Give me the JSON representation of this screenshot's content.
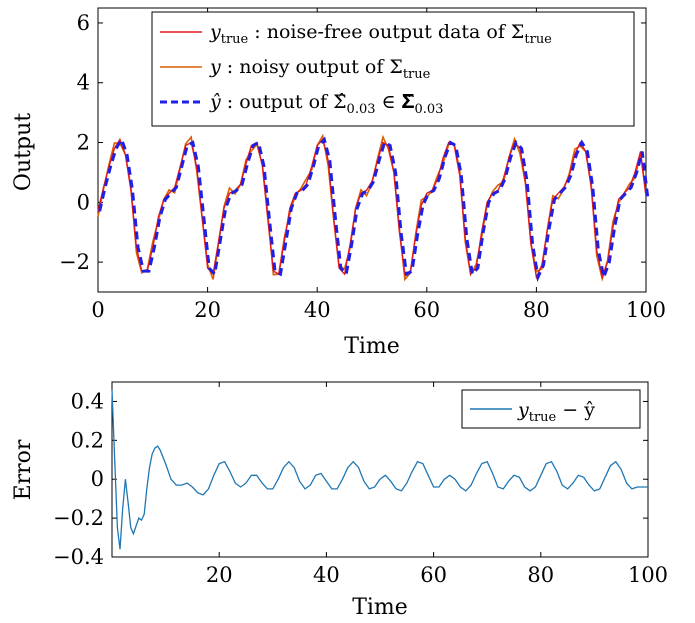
{
  "chart_data": [
    {
      "type": "line",
      "xlabel": "Time",
      "ylabel": "Output",
      "xlim": [
        0,
        100
      ],
      "ylim": [
        -3,
        6.5
      ],
      "x_ticks": [
        0,
        20,
        40,
        60,
        80,
        100
      ],
      "y_ticks": [
        -2,
        0,
        2,
        4,
        6
      ],
      "y_tick_labels": [
        "−2",
        "0",
        "2",
        "4",
        "6"
      ],
      "grid": false,
      "legend_position": "top-right",
      "legend": [
        {
          "symbol": "y",
          "subscript": "true",
          "text": " : noise-free output data of Σ",
          "text_sub": "true",
          "color": "#e41a1c",
          "style": "solid"
        },
        {
          "symbol": "y",
          "subscript": "",
          "text": " : noisy output of Σ",
          "text_sub": "true",
          "color": "#d95f02",
          "style": "solid"
        },
        {
          "symbol": "ŷ",
          "subscript": "",
          "text": " : output of Σ̂",
          "text_sub": "0.03",
          "text_tail": " ∈ 𝚺̂",
          "tail_sub": "0.03",
          "color": "#1f1fe6",
          "style": "dashed"
        }
      ],
      "signal": {
        "period": 12.5,
        "amplitude_peak": 2.05,
        "amplitude_trough": -2.45,
        "points": [
          [
            0,
            -0.3
          ],
          [
            1,
            0.5
          ],
          [
            2,
            1.2
          ],
          [
            3,
            1.8
          ],
          [
            4,
            2.1
          ],
          [
            5,
            1.6
          ],
          [
            6,
            0.4
          ],
          [
            7,
            -1.5
          ],
          [
            8,
            -2.3
          ],
          [
            9,
            -2.3
          ],
          [
            10,
            -1.5
          ],
          [
            11,
            -0.5
          ],
          [
            12,
            0.1
          ],
          [
            13,
            0.3
          ],
          [
            14,
            0.5
          ],
          [
            15,
            1.2
          ],
          [
            16,
            1.9
          ],
          [
            17,
            2.0
          ],
          [
            18,
            1.2
          ],
          [
            19,
            -0.5
          ],
          [
            20,
            -2.2
          ],
          [
            21,
            -2.4
          ],
          [
            22,
            -1.3
          ],
          [
            23,
            -0.2
          ],
          [
            24,
            0.3
          ],
          [
            25,
            0.4
          ],
          [
            26,
            0.6
          ],
          [
            27,
            1.3
          ],
          [
            28,
            1.9
          ],
          [
            29,
            2.0
          ],
          [
            30,
            1.2
          ],
          [
            31,
            -0.6
          ],
          [
            32,
            -2.3
          ],
          [
            33,
            -2.4
          ],
          [
            34,
            -1.3
          ],
          [
            35,
            -0.2
          ],
          [
            36,
            0.3
          ],
          [
            37,
            0.4
          ],
          [
            38,
            0.6
          ],
          [
            39,
            1.2
          ],
          [
            40,
            1.9
          ],
          [
            41,
            2.1
          ],
          [
            42,
            1.4
          ],
          [
            43,
            -0.5
          ],
          [
            44,
            -2.2
          ],
          [
            45,
            -2.4
          ],
          [
            46,
            -1.4
          ],
          [
            47,
            -0.2
          ],
          [
            48,
            0.3
          ],
          [
            49,
            0.4
          ],
          [
            50,
            0.7
          ],
          [
            51,
            1.4
          ],
          [
            52,
            2.0
          ],
          [
            53,
            1.9
          ],
          [
            54,
            1.0
          ],
          [
            55,
            -1.0
          ],
          [
            56,
            -2.4
          ],
          [
            57,
            -2.3
          ],
          [
            58,
            -1.1
          ],
          [
            59,
            -0.1
          ],
          [
            60,
            0.3
          ],
          [
            61,
            0.4
          ],
          [
            62,
            0.8
          ],
          [
            63,
            1.5
          ],
          [
            64,
            2.0
          ],
          [
            65,
            1.9
          ],
          [
            66,
            0.9
          ],
          [
            67,
            -1.2
          ],
          [
            68,
            -2.4
          ],
          [
            69,
            -2.2
          ],
          [
            70,
            -1.0
          ],
          [
            71,
            0.0
          ],
          [
            72,
            0.3
          ],
          [
            73,
            0.4
          ],
          [
            74,
            0.8
          ],
          [
            75,
            1.5
          ],
          [
            76,
            2.0
          ],
          [
            77,
            1.8
          ],
          [
            78,
            0.7
          ],
          [
            79,
            -1.4
          ],
          [
            80,
            -2.5
          ],
          [
            81,
            -2.1
          ],
          [
            82,
            -0.9
          ],
          [
            83,
            0.1
          ],
          [
            84,
            0.3
          ],
          [
            85,
            0.5
          ],
          [
            86,
            0.9
          ],
          [
            87,
            1.6
          ],
          [
            88,
            2.0
          ],
          [
            89,
            1.7
          ],
          [
            90,
            0.5
          ],
          [
            91,
            -1.6
          ],
          [
            92,
            -2.5
          ],
          [
            93,
            -2.0
          ],
          [
            94,
            -0.8
          ],
          [
            95,
            0.1
          ],
          [
            96,
            0.3
          ],
          [
            97,
            0.5
          ],
          [
            98,
            1.0
          ],
          [
            99,
            1.7
          ],
          [
            100,
            0.2
          ]
        ]
      }
    },
    {
      "type": "line",
      "xlabel": "Time",
      "ylabel": "Error",
      "xlim": [
        0,
        100
      ],
      "ylim": [
        -0.4,
        0.5
      ],
      "x_ticks": [
        20,
        40,
        60,
        80,
        100
      ],
      "y_ticks": [
        -0.4,
        -0.2,
        0,
        0.2,
        0.4
      ],
      "y_tick_labels": [
        "−0.4",
        "−0.2",
        "0",
        "0.2",
        "0.4"
      ],
      "grid": false,
      "legend_position": "top-right",
      "legend": [
        {
          "symbol": "y",
          "subscript": "true",
          "text": " − ŷ",
          "color": "#1f77b4",
          "style": "solid"
        }
      ],
      "series": [
        {
          "name": "y_true − ŷ",
          "color": "#1f77b4",
          "points": [
            [
              0,
              0.46
            ],
            [
              0.5,
              0.1
            ],
            [
              1,
              -0.25
            ],
            [
              1.5,
              -0.36
            ],
            [
              2,
              -0.15
            ],
            [
              2.5,
              0.0
            ],
            [
              3,
              -0.12
            ],
            [
              3.5,
              -0.25
            ],
            [
              4,
              -0.28
            ],
            [
              4.5,
              -0.24
            ],
            [
              5,
              -0.2
            ],
            [
              5.5,
              -0.21
            ],
            [
              6,
              -0.18
            ],
            [
              6.5,
              -0.05
            ],
            [
              7,
              0.06
            ],
            [
              7.5,
              0.13
            ],
            [
              8,
              0.16
            ],
            [
              8.5,
              0.17
            ],
            [
              9,
              0.15
            ],
            [
              10,
              0.08
            ],
            [
              11,
              0.0
            ],
            [
              12,
              -0.03
            ],
            [
              13,
              -0.03
            ],
            [
              14,
              -0.02
            ],
            [
              15,
              -0.04
            ],
            [
              16,
              -0.07
            ],
            [
              17,
              -0.08
            ],
            [
              18,
              -0.05
            ],
            [
              19,
              0.02
            ],
            [
              20,
              0.08
            ],
            [
              21,
              0.09
            ],
            [
              22,
              0.04
            ],
            [
              23,
              -0.02
            ],
            [
              24,
              -0.04
            ],
            [
              25,
              -0.02
            ],
            [
              26,
              0.02
            ],
            [
              27,
              0.02
            ],
            [
              28,
              -0.02
            ],
            [
              29,
              -0.05
            ],
            [
              30,
              -0.05
            ],
            [
              31,
              0.0
            ],
            [
              32,
              0.06
            ],
            [
              33,
              0.09
            ],
            [
              34,
              0.06
            ],
            [
              35,
              -0.01
            ],
            [
              36,
              -0.05
            ],
            [
              37,
              -0.03
            ],
            [
              38,
              0.02
            ],
            [
              39,
              0.03
            ],
            [
              40,
              -0.01
            ],
            [
              41,
              -0.05
            ],
            [
              42,
              -0.05
            ],
            [
              43,
              0.0
            ],
            [
              44,
              0.06
            ],
            [
              45,
              0.09
            ],
            [
              46,
              0.06
            ],
            [
              47,
              -0.01
            ],
            [
              48,
              -0.05
            ],
            [
              49,
              -0.04
            ],
            [
              50,
              0.0
            ],
            [
              51,
              0.02
            ],
            [
              52,
              -0.01
            ],
            [
              53,
              -0.05
            ],
            [
              54,
              -0.06
            ],
            [
              55,
              -0.02
            ],
            [
              56,
              0.04
            ],
            [
              57,
              0.09
            ],
            [
              58,
              0.08
            ],
            [
              59,
              0.02
            ],
            [
              60,
              -0.04
            ],
            [
              61,
              -0.04
            ],
            [
              62,
              0.0
            ],
            [
              63,
              0.02
            ],
            [
              64,
              0.0
            ],
            [
              65,
              -0.04
            ],
            [
              66,
              -0.06
            ],
            [
              67,
              -0.03
            ],
            [
              68,
              0.03
            ],
            [
              69,
              0.08
            ],
            [
              70,
              0.09
            ],
            [
              71,
              0.03
            ],
            [
              72,
              -0.04
            ],
            [
              73,
              -0.05
            ],
            [
              74,
              -0.01
            ],
            [
              75,
              0.02
            ],
            [
              76,
              0.01
            ],
            [
              77,
              -0.04
            ],
            [
              78,
              -0.06
            ],
            [
              79,
              -0.04
            ],
            [
              80,
              0.02
            ],
            [
              81,
              0.08
            ],
            [
              82,
              0.09
            ],
            [
              83,
              0.04
            ],
            [
              84,
              -0.03
            ],
            [
              85,
              -0.05
            ],
            [
              86,
              -0.02
            ],
            [
              87,
              0.02
            ],
            [
              88,
              0.01
            ],
            [
              89,
              -0.03
            ],
            [
              90,
              -0.06
            ],
            [
              91,
              -0.05
            ],
            [
              92,
              0.01
            ],
            [
              93,
              0.07
            ],
            [
              94,
              0.09
            ],
            [
              95,
              0.05
            ],
            [
              96,
              -0.02
            ],
            [
              97,
              -0.05
            ],
            [
              98,
              -0.04
            ],
            [
              99,
              -0.04
            ],
            [
              100,
              -0.04
            ]
          ]
        }
      ]
    }
  ]
}
